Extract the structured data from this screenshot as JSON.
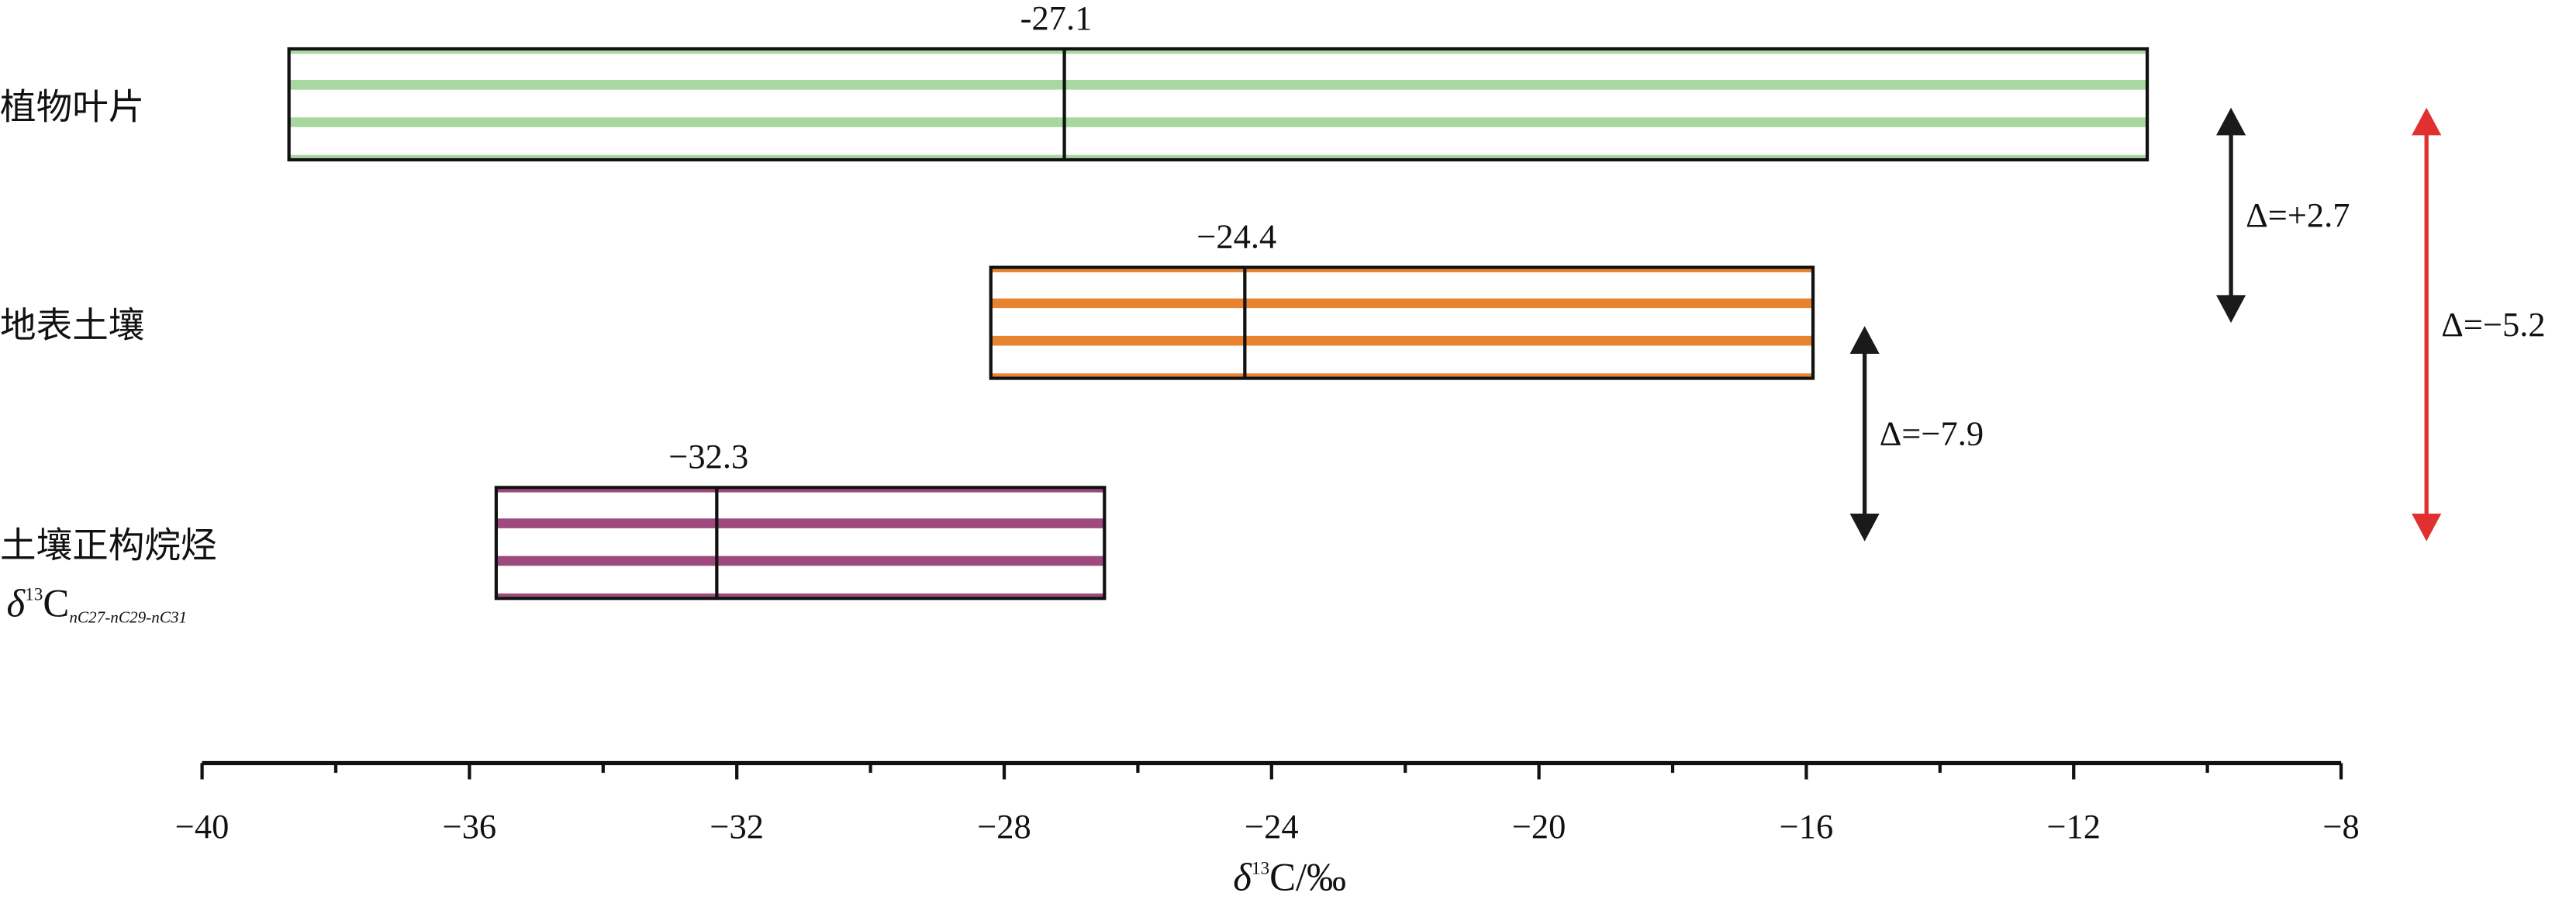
{
  "chart_data": {
    "type": "range",
    "categories": [
      "植物叶片",
      "地表土壤",
      "土壤正构烷烃"
    ],
    "category_note": {
      "symbol": "δ",
      "superscript": "13",
      "base": "C",
      "subscript": "nC27-nC29-nC31"
    },
    "series": [
      {
        "color": "#a8d8a0",
        "low": [
          -38.7
        ],
        "high": [
          -10.9
        ],
        "mean": -27.1,
        "mean_label": "-27.1"
      },
      {
        "color": "#e8842f",
        "low": [
          -28.2
        ],
        "high": [
          -15.9
        ],
        "mean": -24.4,
        "mean_label": "−24.4"
      },
      {
        "color": "#9e4a7e",
        "low": [
          -35.6
        ],
        "high": [
          -26.5
        ],
        "mean": -32.3,
        "mean_label": "−32.3"
      }
    ],
    "xlim": [
      -40,
      -8
    ],
    "xticks": [
      {
        "value": -40,
        "label": "−40"
      },
      {
        "value": -36,
        "label": "−36"
      },
      {
        "value": -32,
        "label": "−32"
      },
      {
        "value": -28,
        "label": "−28"
      },
      {
        "value": -24,
        "label": "−24"
      },
      {
        "value": -20,
        "label": "−20"
      },
      {
        "value": -16,
        "label": "−16"
      },
      {
        "value": -12,
        "label": "−12"
      },
      {
        "value": -8,
        "label": "−8"
      }
    ],
    "xminor_ticks": [
      -38,
      -34,
      -30,
      -26,
      -22,
      -18,
      -14,
      -10
    ],
    "x_label": {
      "symbol": "δ",
      "superscript": "13",
      "base": "C/‰"
    },
    "annotations": [
      {
        "text": "Δ=+2.7",
        "color": "#1a1a1a"
      },
      {
        "text": "Δ=−7.9",
        "color": "#1a1a1a"
      },
      {
        "text": "Δ=−5.2",
        "color": "#e03030"
      }
    ]
  }
}
